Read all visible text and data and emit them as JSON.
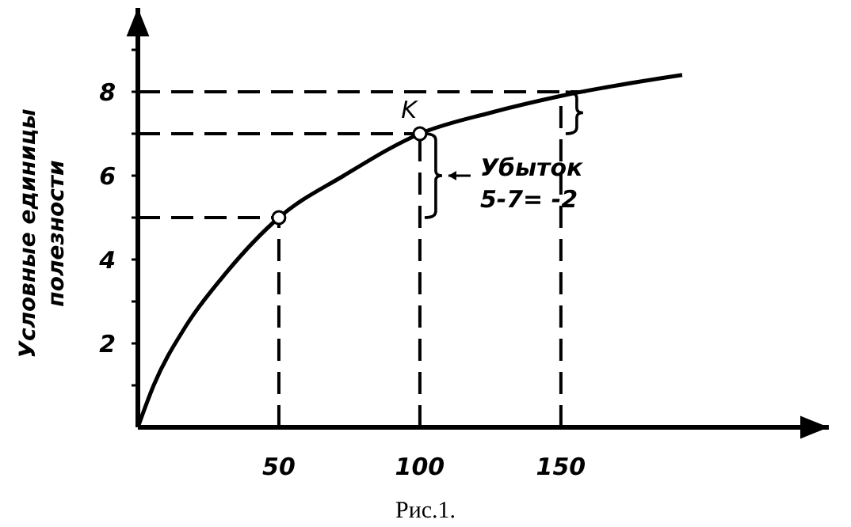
{
  "chart_data": {
    "type": "line",
    "ylabel": "Условные единицы полезности",
    "x": [
      0,
      5.6,
      16.9,
      31.5,
      50,
      73,
      100,
      125,
      150,
      193
    ],
    "series": [
      {
        "color": "#000000",
        "values": [
          0,
          1.0,
          2.4,
          3.7,
          5,
          6.0,
          7,
          7.5,
          7.9,
          8.4
        ]
      },
      {
        "type": "scatter",
        "x": [
          50,
          100
        ],
        "values": [
          5,
          7
        ],
        "color": "#000000",
        "marker": "circle"
      }
    ],
    "xlim": [
      0,
      245
    ],
    "ylim": [
      0,
      10
    ],
    "xticks": [
      50,
      100,
      150
    ],
    "yticks": [
      {
        "value": 1,
        "label": null
      },
      2,
      {
        "value": 3,
        "label": null
      },
      4,
      {
        "value": 5,
        "label": null
      },
      6,
      {
        "value": 7,
        "label": null
      },
      8,
      {
        "value": 9,
        "label": null
      }
    ],
    "ref_lines": [
      {
        "axis": "y",
        "value": 5,
        "line_style": "dashed"
      },
      {
        "axis": "y",
        "value": 7,
        "line_style": "dashed"
      },
      {
        "axis": "y",
        "value": 8,
        "line_style": "dashed"
      },
      {
        "axis": "x",
        "value": 50,
        "line_style": "dashed"
      },
      {
        "axis": "x",
        "value": 100,
        "line_style": "dashed"
      },
      {
        "axis": "x",
        "value": 150,
        "line_style": "dashed"
      }
    ],
    "annotations": [
      {
        "text": "K",
        "x": 100,
        "y": 7
      },
      {
        "text": "Убыток\n5-7= -2",
        "x": 100,
        "y": 6
      },
      "Рис.1."
    ],
    "grid": false
  }
}
